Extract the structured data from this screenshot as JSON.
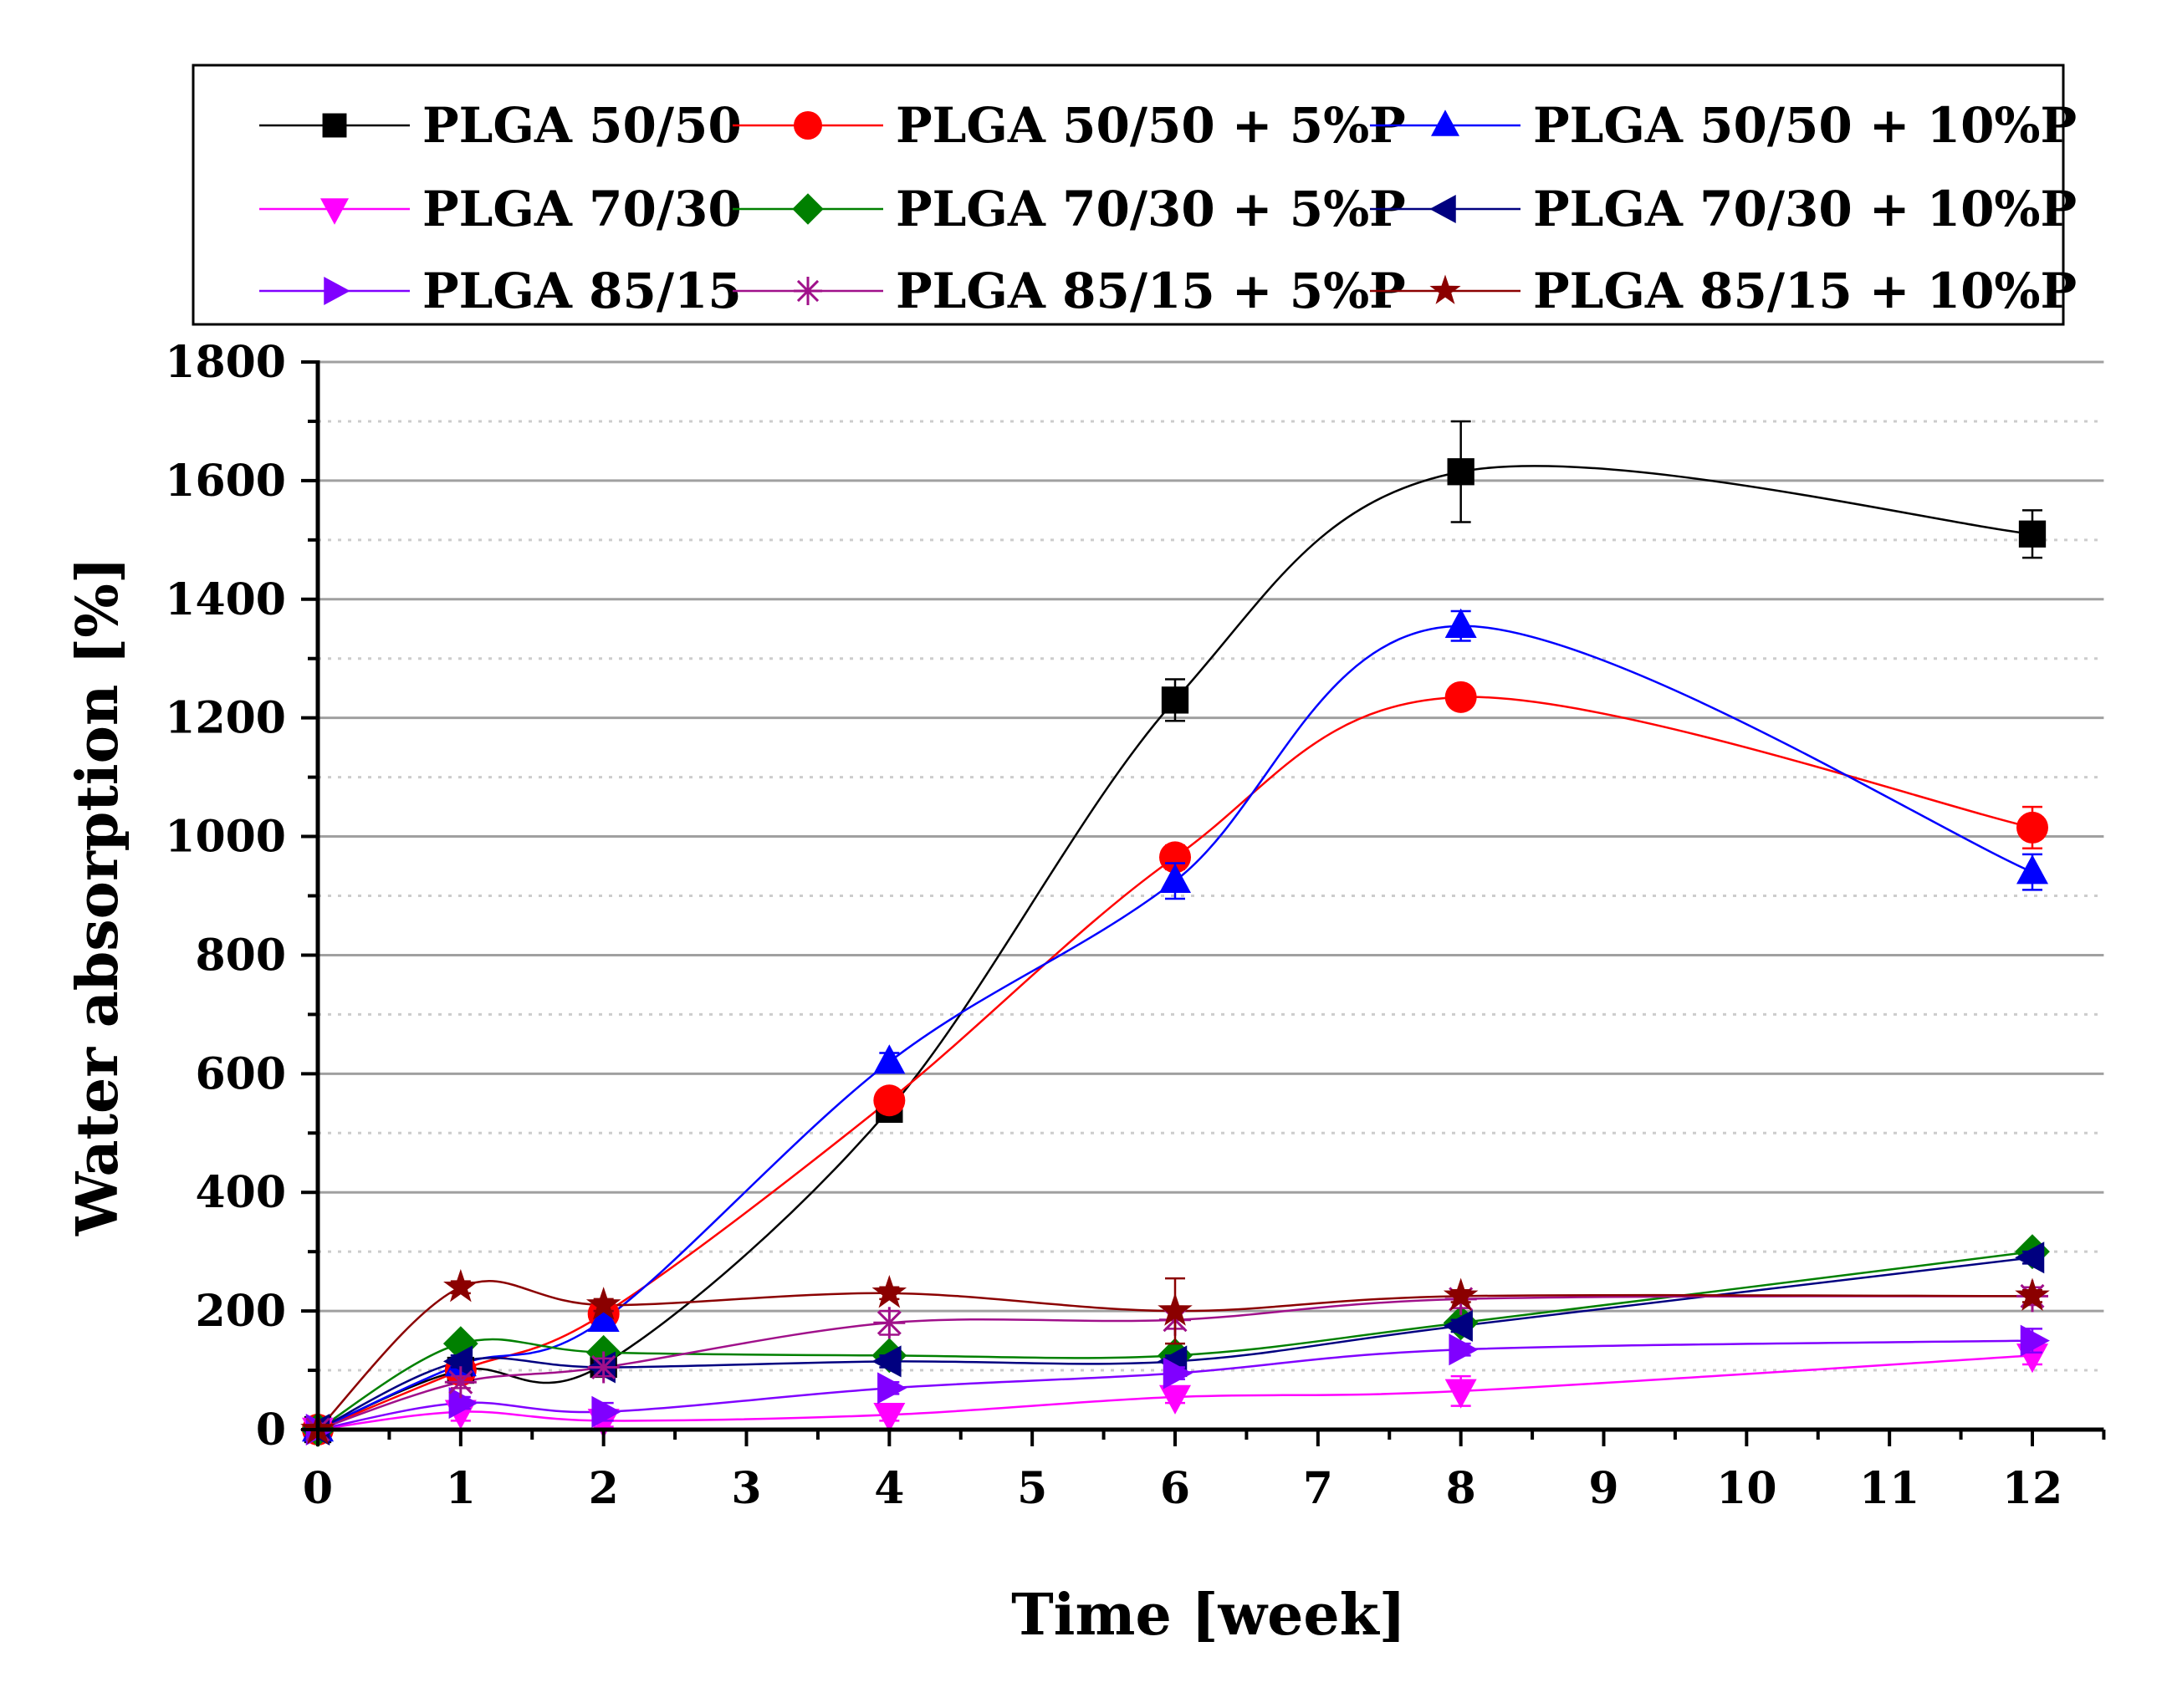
{
  "chart_data": {
    "type": "line",
    "title": "",
    "xlabel": "Time [week]",
    "ylabel": "Water absorption [%]",
    "xlim": [
      0,
      12.5
    ],
    "ylim": [
      0,
      1800
    ],
    "xticks": [
      0,
      1,
      2,
      3,
      4,
      5,
      6,
      7,
      8,
      9,
      10,
      11,
      12
    ],
    "yticks": [
      0,
      200,
      400,
      600,
      800,
      1000,
      1200,
      1400,
      1600,
      1800
    ],
    "grid": true,
    "legend_position": "top",
    "x": [
      0,
      1,
      2,
      4,
      6,
      8,
      12
    ],
    "series": [
      {
        "name": "PLGA 50/50",
        "color": "#000000",
        "marker": "square",
        "values": [
          0,
          100,
          110,
          540,
          1230,
          1615,
          1510
        ],
        "errors": [
          0,
          10,
          10,
          15,
          35,
          85,
          40
        ]
      },
      {
        "name": "PLGA 50/50 + 5%P",
        "color": "#ff0000",
        "marker": "circle",
        "values": [
          0,
          100,
          195,
          555,
          965,
          1235,
          1015
        ],
        "errors": [
          0,
          20,
          20,
          15,
          20,
          15,
          35
        ]
      },
      {
        "name": "PLGA 50/50 + 10%P",
        "color": "#0000ff",
        "marker": "triangle-up",
        "values": [
          0,
          110,
          185,
          620,
          925,
          1355,
          940
        ],
        "errors": [
          0,
          15,
          15,
          15,
          30,
          25,
          30
        ]
      },
      {
        "name": "PLGA 70/30",
        "color": "#ff00ff",
        "marker": "triangle-down",
        "values": [
          0,
          30,
          15,
          25,
          55,
          65,
          125
        ],
        "errors": [
          0,
          15,
          10,
          10,
          10,
          25,
          15
        ]
      },
      {
        "name": "PLGA 70/30 + 5%P",
        "color": "#008000",
        "marker": "diamond",
        "values": [
          0,
          145,
          130,
          125,
          125,
          180,
          300
        ],
        "errors": [
          0,
          10,
          10,
          10,
          10,
          10,
          10
        ]
      },
      {
        "name": "PLGA 70/30 + 10%P",
        "color": "#000080",
        "marker": "triangle-left",
        "values": [
          0,
          115,
          105,
          115,
          115,
          175,
          290
        ],
        "errors": [
          0,
          10,
          10,
          10,
          10,
          10,
          10
        ]
      },
      {
        "name": "PLGA 85/15",
        "color": "#8000ff",
        "marker": "triangle-right",
        "values": [
          0,
          45,
          30,
          70,
          95,
          135,
          150
        ],
        "errors": [
          0,
          10,
          15,
          10,
          10,
          10,
          20
        ]
      },
      {
        "name": "PLGA 85/15 + 5%P",
        "color": "#a0108a",
        "marker": "asterisk",
        "values": [
          0,
          80,
          105,
          180,
          185,
          220,
          225
        ],
        "errors": [
          0,
          10,
          15,
          20,
          15,
          15,
          15
        ]
      },
      {
        "name": "PLGA 85/15 + 10%P",
        "color": "#8b0000",
        "marker": "star",
        "values": [
          0,
          240,
          210,
          230,
          200,
          225,
          225
        ],
        "errors": [
          0,
          10,
          10,
          10,
          55,
          10,
          10
        ]
      }
    ]
  }
}
